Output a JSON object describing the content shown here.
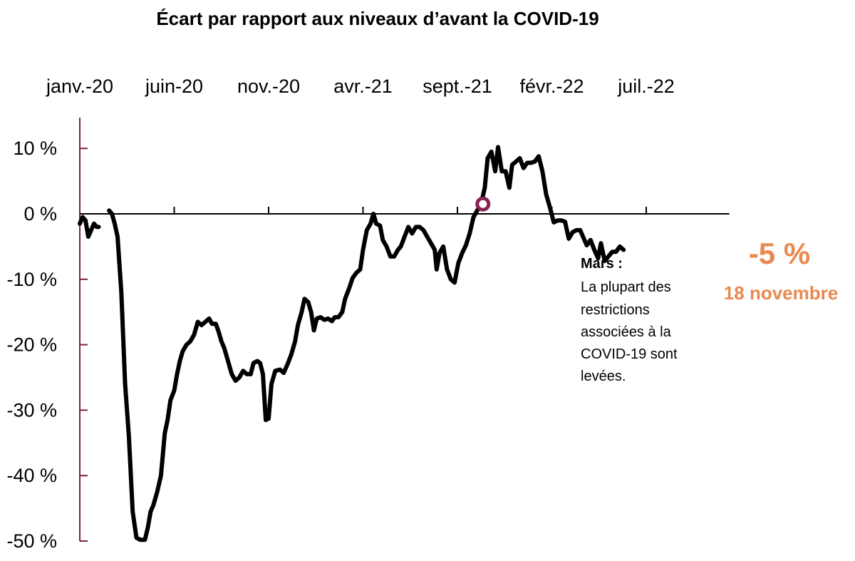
{
  "chart_data": {
    "type": "line",
    "title": "Écart par rapport aux niveaux d’avant la COVID-19",
    "x_tick_labels": [
      "janv.-20",
      "juin-20",
      "nov.-20",
      "avr.-21",
      "sept.-21",
      "févr.-22",
      "juil.-22"
    ],
    "y_tick_labels": [
      "10 %",
      "0 %",
      "-10 %",
      "-20 %",
      "-30 %",
      "-40 %",
      "-50 %"
    ],
    "y_ticks": [
      10,
      0,
      -10,
      -20,
      -30,
      -40,
      -50
    ],
    "ylim": [
      -50,
      12
    ],
    "x_range_months": [
      0,
      34.4
    ],
    "xlabel": "",
    "ylabel": "",
    "grid": false,
    "colors": {
      "line": "#000000",
      "axis": "#7a2048",
      "marker": "#8a2352",
      "callout": "#e8894f"
    },
    "series_segments": [
      [
        [
          0.0,
          -1.5
        ],
        [
          0.15,
          -0.5
        ],
        [
          0.3,
          -1.0
        ],
        [
          0.45,
          -3.5
        ],
        [
          0.6,
          -2.5
        ],
        [
          0.75,
          -1.5
        ],
        [
          0.9,
          -2.0
        ],
        [
          1.0,
          -2.0
        ]
      ],
      [
        [
          1.55,
          0.5
        ],
        [
          1.7,
          0.0
        ],
        [
          1.85,
          -1.5
        ],
        [
          2.0,
          -3.5
        ],
        [
          2.2,
          -12.0
        ],
        [
          2.4,
          -26.0
        ],
        [
          2.6,
          -34.0
        ],
        [
          2.8,
          -45.5
        ],
        [
          3.0,
          -49.5
        ],
        [
          3.2,
          -49.8
        ],
        [
          3.45,
          -49.8
        ],
        [
          3.6,
          -48.0
        ],
        [
          3.75,
          -45.5
        ],
        [
          3.9,
          -44.5
        ],
        [
          4.1,
          -42.5
        ],
        [
          4.3,
          -40.0
        ],
        [
          4.5,
          -33.5
        ],
        [
          4.65,
          -31.5
        ],
        [
          4.8,
          -28.5
        ],
        [
          5.0,
          -27.0
        ],
        [
          5.15,
          -24.5
        ],
        [
          5.3,
          -22.5
        ],
        [
          5.45,
          -21.0
        ],
        [
          5.65,
          -20.0
        ],
        [
          5.85,
          -19.5
        ],
        [
          6.05,
          -18.5
        ],
        [
          6.25,
          -16.5
        ],
        [
          6.45,
          -17.0
        ],
        [
          6.65,
          -16.5
        ],
        [
          6.85,
          -16.0
        ],
        [
          7.0,
          -16.8
        ],
        [
          7.2,
          -16.8
        ],
        [
          7.35,
          -18.0
        ],
        [
          7.5,
          -19.5
        ],
        [
          7.65,
          -20.5
        ],
        [
          7.85,
          -22.5
        ],
        [
          8.05,
          -24.5
        ],
        [
          8.25,
          -25.5
        ],
        [
          8.45,
          -25.0
        ],
        [
          8.65,
          -24.0
        ],
        [
          8.85,
          -24.5
        ],
        [
          9.05,
          -24.5
        ],
        [
          9.2,
          -22.8
        ],
        [
          9.4,
          -22.5
        ],
        [
          9.55,
          -22.8
        ],
        [
          9.7,
          -24.5
        ],
        [
          9.85,
          -31.5
        ],
        [
          10.0,
          -31.3
        ],
        [
          10.15,
          -26.0
        ],
        [
          10.35,
          -24.0
        ],
        [
          10.6,
          -23.8
        ],
        [
          10.8,
          -24.3
        ],
        [
          11.0,
          -23.0
        ],
        [
          11.2,
          -21.5
        ],
        [
          11.4,
          -19.5
        ],
        [
          11.55,
          -17.0
        ],
        [
          11.75,
          -15.0
        ],
        [
          11.9,
          -13.0
        ],
        [
          12.1,
          -13.5
        ],
        [
          12.25,
          -15.0
        ],
        [
          12.4,
          -17.8
        ],
        [
          12.55,
          -16.0
        ],
        [
          12.75,
          -15.8
        ],
        [
          12.95,
          -16.2
        ],
        [
          13.15,
          -16.0
        ],
        [
          13.35,
          -16.4
        ],
        [
          13.5,
          -15.8
        ],
        [
          13.7,
          -15.8
        ],
        [
          13.9,
          -15.0
        ],
        [
          14.05,
          -13.0
        ],
        [
          14.25,
          -11.5
        ],
        [
          14.45,
          -9.8
        ],
        [
          14.65,
          -9.0
        ],
        [
          14.85,
          -8.5
        ],
        [
          15.0,
          -5.5
        ],
        [
          15.2,
          -2.5
        ],
        [
          15.4,
          -1.5
        ],
        [
          15.55,
          0.0
        ],
        [
          15.7,
          -1.5
        ],
        [
          15.9,
          -1.8
        ],
        [
          16.05,
          -4.0
        ],
        [
          16.25,
          -5.0
        ],
        [
          16.45,
          -6.5
        ],
        [
          16.65,
          -6.5
        ],
        [
          16.85,
          -5.5
        ],
        [
          17.0,
          -5.0
        ],
        [
          17.2,
          -3.5
        ],
        [
          17.4,
          -2.0
        ],
        [
          17.6,
          -3.0
        ],
        [
          17.8,
          -2.0
        ],
        [
          18.0,
          -2.0
        ],
        [
          18.2,
          -2.5
        ],
        [
          18.4,
          -3.5
        ],
        [
          18.6,
          -4.5
        ],
        [
          18.8,
          -5.5
        ],
        [
          18.9,
          -8.5
        ],
        [
          19.05,
          -6.0
        ],
        [
          19.25,
          -5.0
        ],
        [
          19.45,
          -8.5
        ],
        [
          19.65,
          -10.0
        ],
        [
          19.85,
          -10.5
        ],
        [
          20.05,
          -7.5
        ],
        [
          20.25,
          -6.0
        ],
        [
          20.45,
          -4.8
        ],
        [
          20.65,
          -3.0
        ],
        [
          20.85,
          -0.5
        ],
        [
          21.05,
          0.5
        ],
        [
          21.25,
          1.5
        ],
        [
          21.45,
          4.0
        ],
        [
          21.6,
          8.5
        ],
        [
          21.8,
          9.5
        ],
        [
          22.0,
          6.5
        ],
        [
          22.15,
          10.2
        ],
        [
          22.35,
          6.5
        ],
        [
          22.55,
          6.5
        ],
        [
          22.75,
          4.0
        ],
        [
          22.9,
          7.5
        ],
        [
          23.1,
          8.0
        ],
        [
          23.3,
          8.5
        ],
        [
          23.5,
          7.0
        ],
        [
          23.7,
          7.8
        ],
        [
          23.9,
          7.8
        ],
        [
          24.1,
          8.0
        ],
        [
          24.3,
          8.8
        ],
        [
          24.5,
          6.5
        ],
        [
          24.7,
          3.0
        ],
        [
          24.9,
          1.0
        ],
        [
          25.1,
          -1.3
        ],
        [
          25.3,
          -1.0
        ],
        [
          25.5,
          -1.0
        ],
        [
          25.7,
          -1.2
        ],
        [
          25.9,
          -3.8
        ],
        [
          26.1,
          -2.8
        ],
        [
          26.3,
          -2.5
        ],
        [
          26.5,
          -2.5
        ],
        [
          26.7,
          -3.8
        ],
        [
          26.85,
          -4.8
        ],
        [
          27.05,
          -4.0
        ],
        [
          27.25,
          -5.5
        ],
        [
          27.45,
          -6.8
        ],
        [
          27.6,
          -4.5
        ],
        [
          27.8,
          -7.2
        ],
        [
          28.0,
          -6.5
        ],
        [
          28.2,
          -5.8
        ],
        [
          28.4,
          -5.8
        ],
        [
          28.6,
          -5.0
        ],
        [
          28.8,
          -5.5
        ]
      ]
    ],
    "marker": {
      "x": 21.35,
      "y": 1.5
    },
    "annotation": {
      "title": "Mars :",
      "lines": [
        "La plupart des",
        "restrictions",
        "associées à la",
        "COVID-19 sont",
        "levées."
      ]
    },
    "callout": {
      "value": "-5 %",
      "date": "18 novembre"
    }
  }
}
